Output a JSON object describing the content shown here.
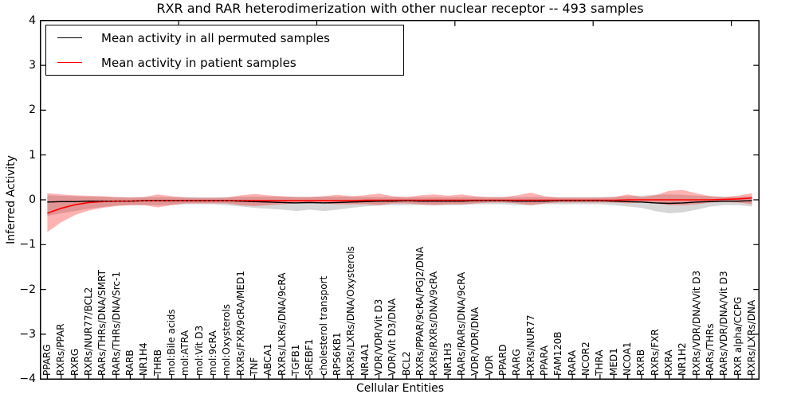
{
  "title": "RXR and RAR heterodimerization with other nuclear receptor -- 493 samples",
  "colors": {
    "background": "#ffffff",
    "axis": "#000000",
    "permuted_line": "#000000",
    "patient_line": "#ff0000",
    "permuted_band": "rgba(120,120,120,0.30)",
    "patient_band": "rgba(255,0,0,0.30)"
  },
  "legend": {
    "entries": [
      {
        "label": "Mean activity in all permuted samples",
        "color": "#000000"
      },
      {
        "label": "Mean activity in patient samples",
        "color": "#ff0000"
      }
    ]
  },
  "chart_data": {
    "type": "line",
    "title": "RXR and RAR heterodimerization with other nuclear receptor -- 493 samples",
    "xlabel": "Cellular Entities",
    "ylabel": "Inferred Activity",
    "ylim": [
      -4,
      4
    ],
    "grid": false,
    "legend_position": "upper left",
    "yticks": [
      {
        "value": 4,
        "label": "4"
      },
      {
        "value": 3,
        "label": "3"
      },
      {
        "value": 2,
        "label": "2"
      },
      {
        "value": 1,
        "label": "1"
      },
      {
        "value": 0,
        "label": "0"
      },
      {
        "value": -1,
        "label": "−1"
      },
      {
        "value": -2,
        "label": "−2"
      },
      {
        "value": -3,
        "label": "−3"
      },
      {
        "value": -4,
        "label": "−4"
      }
    ],
    "top_axis_tick_positions": [
      10,
      20,
      30,
      40,
      50
    ],
    "categories": [
      "PPARG",
      "RXRs/PPAR",
      "RXRG",
      "RXRs/NUR77/BCL2",
      "RARs/THRs/DNA/SMRT",
      "RARs/THRs/DNA/Src-1",
      "RARB",
      "NR1H4",
      "THRB",
      "mol:Bile acids",
      "mol:ATRA",
      "mol:Vit D3",
      "mol:9cRA",
      "mol:Oxysterols",
      "RXRs/FXR/9cRA/MED1",
      "TNF",
      "ABCA1",
      "RXRs/LXRs/DNA/9cRA",
      "TGFB1",
      "SREBF1",
      "cholesterol transport",
      "RPS6KB1",
      "RXRs/LXRs/DNA/Oxysterols",
      "NR4A1",
      "VDR/VDR/Vit D3",
      "VDR/Vit D3/DNA",
      "BCL2",
      "RXRs/PPAR/9cRA/PGJ2/DNA",
      "RXRs/RXRs/DNA/9cRA",
      "NR1H3",
      "RARs/RARs/DNA/9cRA",
      "VDR/VDR/DNA",
      "VDR",
      "PPARD",
      "RARG",
      "RXRs/NUR77",
      "PPARA",
      "FAM120B",
      "RARA",
      "NCOR2",
      "THRA",
      "MED1",
      "NCOA1",
      "RXRB",
      "RXRs/FXR",
      "RXRA",
      "NR1H2",
      "RXRs/VDR/DNA/Vit D3",
      "RARs/THRs",
      "RARs/VDR/DNA/Vit D3",
      "RXR alpha/CCPG",
      "RXRs/LXRs/DNA"
    ],
    "series": [
      {
        "name": "Mean activity in all permuted samples",
        "color": "#000000",
        "values": [
          -0.05,
          -0.04,
          -0.04,
          -0.03,
          -0.03,
          -0.03,
          -0.03,
          -0.02,
          -0.02,
          -0.02,
          -0.02,
          -0.02,
          -0.02,
          -0.02,
          -0.03,
          -0.04,
          -0.05,
          -0.06,
          -0.07,
          -0.06,
          -0.07,
          -0.06,
          -0.05,
          -0.04,
          -0.03,
          -0.03,
          -0.02,
          -0.03,
          -0.03,
          -0.03,
          -0.03,
          -0.02,
          -0.02,
          -0.02,
          -0.03,
          -0.03,
          -0.03,
          -0.02,
          -0.02,
          -0.02,
          -0.02,
          -0.03,
          -0.04,
          -0.05,
          -0.07,
          -0.08,
          -0.07,
          -0.05,
          -0.04,
          -0.03,
          -0.03,
          -0.02
        ],
        "band_upper": [
          0.1,
          0.09,
          0.08,
          0.07,
          0.07,
          0.06,
          0.06,
          0.06,
          0.06,
          0.06,
          0.06,
          0.06,
          0.06,
          0.06,
          0.07,
          0.07,
          0.07,
          0.07,
          0.07,
          0.07,
          0.07,
          0.07,
          0.07,
          0.06,
          0.06,
          0.06,
          0.06,
          0.06,
          0.06,
          0.06,
          0.06,
          0.06,
          0.06,
          0.06,
          0.06,
          0.06,
          0.06,
          0.06,
          0.06,
          0.06,
          0.06,
          0.07,
          0.08,
          0.09,
          0.11,
          0.12,
          0.11,
          0.09,
          0.08,
          0.07,
          0.07,
          0.08
        ],
        "band_lower": [
          -0.36,
          -0.3,
          -0.25,
          -0.2,
          -0.16,
          -0.13,
          -0.12,
          -0.12,
          -0.12,
          -0.11,
          -0.1,
          -0.1,
          -0.1,
          -0.12,
          -0.15,
          -0.18,
          -0.2,
          -0.22,
          -0.25,
          -0.22,
          -0.25,
          -0.22,
          -0.18,
          -0.15,
          -0.13,
          -0.12,
          -0.12,
          -0.12,
          -0.12,
          -0.12,
          -0.12,
          -0.1,
          -0.1,
          -0.1,
          -0.12,
          -0.12,
          -0.1,
          -0.1,
          -0.1,
          -0.1,
          -0.1,
          -0.12,
          -0.15,
          -0.18,
          -0.25,
          -0.3,
          -0.28,
          -0.22,
          -0.15,
          -0.12,
          -0.12,
          -0.15
        ]
      },
      {
        "name": "Mean activity in patient samples",
        "color": "#ff0000",
        "values": [
          -0.3,
          -0.19,
          -0.11,
          -0.06,
          -0.04,
          -0.03,
          -0.03,
          -0.02,
          -0.02,
          -0.02,
          -0.02,
          -0.02,
          -0.02,
          -0.02,
          -0.02,
          -0.02,
          -0.02,
          -0.02,
          -0.02,
          -0.02,
          -0.02,
          -0.02,
          -0.02,
          -0.01,
          -0.01,
          -0.01,
          -0.01,
          -0.01,
          -0.01,
          -0.01,
          -0.01,
          -0.01,
          -0.01,
          -0.01,
          -0.01,
          -0.01,
          -0.01,
          -0.01,
          -0.01,
          -0.01,
          -0.01,
          -0.01,
          0.0,
          0.0,
          0.0,
          0.0,
          0.0,
          0.0,
          0.0,
          0.01,
          0.02,
          0.04
        ],
        "band_upper": [
          0.15,
          0.12,
          0.1,
          0.09,
          0.08,
          0.06,
          0.05,
          0.06,
          0.12,
          0.08,
          0.05,
          0.04,
          0.04,
          0.05,
          0.1,
          0.13,
          0.1,
          0.08,
          0.06,
          0.06,
          0.08,
          0.11,
          0.08,
          0.1,
          0.14,
          0.08,
          0.06,
          0.1,
          0.12,
          0.09,
          0.12,
          0.08,
          0.06,
          0.06,
          0.1,
          0.16,
          0.08,
          0.05,
          0.05,
          0.05,
          0.05,
          0.06,
          0.12,
          0.06,
          0.1,
          0.2,
          0.22,
          0.14,
          0.08,
          0.06,
          0.09,
          0.15
        ],
        "band_lower": [
          -0.72,
          -0.5,
          -0.34,
          -0.24,
          -0.18,
          -0.14,
          -0.12,
          -0.12,
          -0.17,
          -0.12,
          -0.08,
          -0.08,
          -0.08,
          -0.08,
          -0.12,
          -0.14,
          -0.12,
          -0.1,
          -0.08,
          -0.08,
          -0.08,
          -0.1,
          -0.1,
          -0.1,
          -0.12,
          -0.08,
          -0.08,
          -0.1,
          -0.12,
          -0.1,
          -0.1,
          -0.08,
          -0.06,
          -0.06,
          -0.08,
          -0.12,
          -0.08,
          -0.06,
          -0.06,
          -0.06,
          -0.06,
          -0.06,
          -0.08,
          -0.06,
          -0.08,
          -0.12,
          -0.12,
          -0.1,
          -0.06,
          -0.05,
          -0.06,
          -0.1
        ]
      }
    ]
  }
}
